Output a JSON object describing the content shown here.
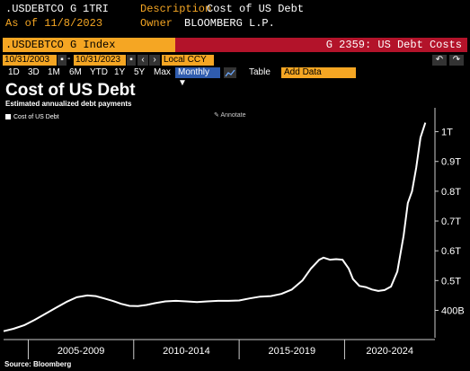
{
  "header": {
    "ticker": ".USDEBTCO G",
    "mnemonic": "1TRI",
    "as_of": "As of 11/8/2023",
    "description_label": "Description",
    "description": "Cost of US Debt",
    "owner_label": "Owner",
    "owner": "BLOOMBERG L.P."
  },
  "command_bar": {
    "security": ".USDEBTCO G Index",
    "function": "G 2359: US Debt Costs"
  },
  "toolbar": {
    "start_date": "10/31/2003",
    "end_date": "10/31/2023",
    "currency": "Local CCY",
    "periods": [
      "1D",
      "3D",
      "1M",
      "6M",
      "YTD",
      "1Y",
      "5Y",
      "Max"
    ],
    "frequency": "Monthly ▼",
    "table_label": "Table",
    "add_data_placeholder": "Add Data",
    "prev_icon": "chevron-left-icon",
    "next_icon": "chevron-right-icon",
    "undo_icon": "undo-icon",
    "redo_icon": "redo-icon",
    "chart_icon": "line-chart-icon"
  },
  "chart_data": {
    "type": "line",
    "title": "Cost of US Debt",
    "subtitle": "Estimated annualized debt payments",
    "legend": "Cost of US Debt",
    "legend_position": "top-left",
    "annotate_label": "Annotate",
    "y_axis_position": "right",
    "y_ticks": [
      {
        "value": 400,
        "label": "400B"
      },
      {
        "value": 500,
        "label": "0.5T"
      },
      {
        "value": 600,
        "label": "0.6T"
      },
      {
        "value": 700,
        "label": "0.7T"
      },
      {
        "value": 800,
        "label": "0.8T"
      },
      {
        "value": 900,
        "label": "0.9T"
      },
      {
        "value": 1000,
        "label": "1T"
      }
    ],
    "ylim": [
      320,
      1050
    ],
    "xlim": [
      2003.83,
      2024.2
    ],
    "x_periods": [
      {
        "label": "2005-2009",
        "start": 2005,
        "end": 2010
      },
      {
        "label": "2010-2014",
        "start": 2010,
        "end": 2015
      },
      {
        "label": "2015-2019",
        "start": 2015,
        "end": 2020
      },
      {
        "label": "2020-2024",
        "start": 2020,
        "end": 2025
      }
    ],
    "grid": false,
    "color": "#ffffff",
    "series": [
      {
        "x": [
          2003.83,
          2004.3,
          2004.8,
          2005.3,
          2005.8,
          2006.3,
          2006.8,
          2007.3,
          2007.8,
          2008.2,
          2008.6,
          2009.0,
          2009.4,
          2009.8,
          2010.2,
          2010.6,
          2011.0,
          2011.5,
          2012.0,
          2012.5,
          2013.0,
          2013.5,
          2014.0,
          2014.5,
          2015.0,
          2015.5,
          2016.0,
          2016.5,
          2017.0,
          2017.5,
          2018.0,
          2018.4,
          2018.8,
          2019.0,
          2019.3,
          2019.6,
          2019.9,
          2020.2,
          2020.4,
          2020.7,
          2021.0,
          2021.3,
          2021.6,
          2021.9,
          2022.2,
          2022.5,
          2022.8,
          2023.0,
          2023.2,
          2023.4,
          2023.6,
          2023.83
        ],
        "y": [
          330,
          338,
          350,
          368,
          388,
          408,
          428,
          444,
          450,
          448,
          440,
          432,
          422,
          415,
          414,
          418,
          424,
          430,
          432,
          430,
          428,
          430,
          432,
          432,
          433,
          440,
          446,
          448,
          455,
          470,
          500,
          540,
          570,
          577,
          570,
          572,
          570,
          540,
          505,
          482,
          478,
          470,
          465,
          468,
          480,
          530,
          650,
          760,
          800,
          880,
          980,
          1030
        ]
      }
    ]
  },
  "source": "Source: Bloomberg"
}
